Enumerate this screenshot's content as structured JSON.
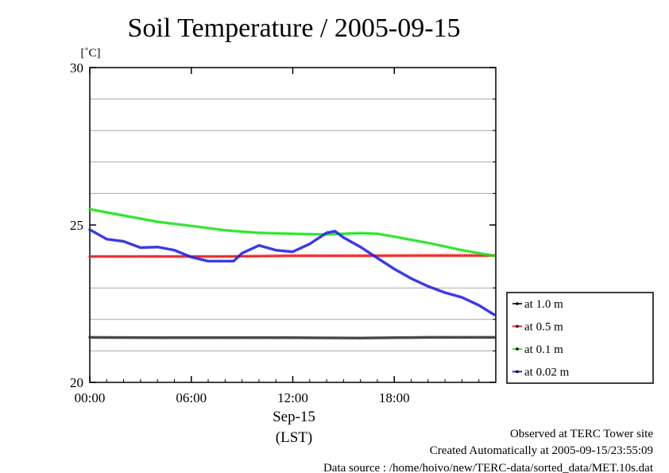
{
  "chart_data": {
    "type": "line",
    "title": "Soil Temperature / 2005-09-15",
    "ylabel": "[˚C]",
    "xlabel_line1": "Sep-15",
    "xlabel_line2": "(LST)",
    "xlim": [
      0,
      24
    ],
    "ylim": [
      20,
      30
    ],
    "x_ticks": [
      {
        "value": 0,
        "label": "00:00"
      },
      {
        "value": 6,
        "label": "06:00"
      },
      {
        "value": 12,
        "label": "12:00"
      },
      {
        "value": 18,
        "label": "18:00"
      }
    ],
    "y_ticks": [
      {
        "value": 20,
        "label": "20"
      },
      {
        "value": 25,
        "label": "25"
      },
      {
        "value": 30,
        "label": "30"
      }
    ],
    "y_grid": [
      21,
      22,
      23,
      24,
      26,
      27,
      28,
      29
    ],
    "grid": true,
    "legend_position": "right",
    "series": [
      {
        "name": "at 1.0 m",
        "color": "#333333",
        "x": [
          0,
          4,
          8,
          12,
          16,
          20,
          23.9
        ],
        "values": [
          21.43,
          21.42,
          21.42,
          21.42,
          21.41,
          21.43,
          21.43
        ]
      },
      {
        "name": "at 0.5 m",
        "color": "#ff2020",
        "x": [
          0,
          4,
          8,
          12,
          16,
          20,
          23.9
        ],
        "values": [
          24.0,
          24.0,
          24.0,
          24.02,
          24.02,
          24.03,
          24.03
        ]
      },
      {
        "name": "at 0.1 m",
        "color": "#22ee22",
        "x": [
          0,
          2,
          4,
          6,
          8,
          10,
          12,
          14,
          16,
          17,
          18,
          20,
          22,
          23.9
        ],
        "values": [
          25.5,
          25.3,
          25.1,
          24.97,
          24.83,
          24.75,
          24.72,
          24.7,
          24.74,
          24.72,
          24.63,
          24.43,
          24.2,
          24.02
        ]
      },
      {
        "name": "at 0.02 m",
        "color": "#2222ee",
        "x": [
          0,
          1,
          2,
          3,
          4,
          5,
          6,
          7,
          8,
          8.5,
          9,
          10,
          11,
          12,
          13,
          14,
          14.5,
          15,
          16,
          17,
          18,
          19,
          20,
          21,
          22,
          23,
          23.9
        ],
        "values": [
          24.85,
          24.55,
          24.48,
          24.28,
          24.3,
          24.2,
          23.98,
          23.85,
          23.85,
          23.85,
          24.1,
          24.35,
          24.2,
          24.15,
          24.4,
          24.75,
          24.8,
          24.6,
          24.3,
          23.95,
          23.6,
          23.3,
          23.05,
          22.85,
          22.7,
          22.45,
          22.15
        ]
      }
    ]
  },
  "footer": {
    "line1": "Observed at TERC Tower site",
    "line2": "Created Automatically at 2005-09-15/23:55:09",
    "line3": "Data source : /home/hoivo/new/TERC-data/sorted_data/MET.10s.dat"
  }
}
